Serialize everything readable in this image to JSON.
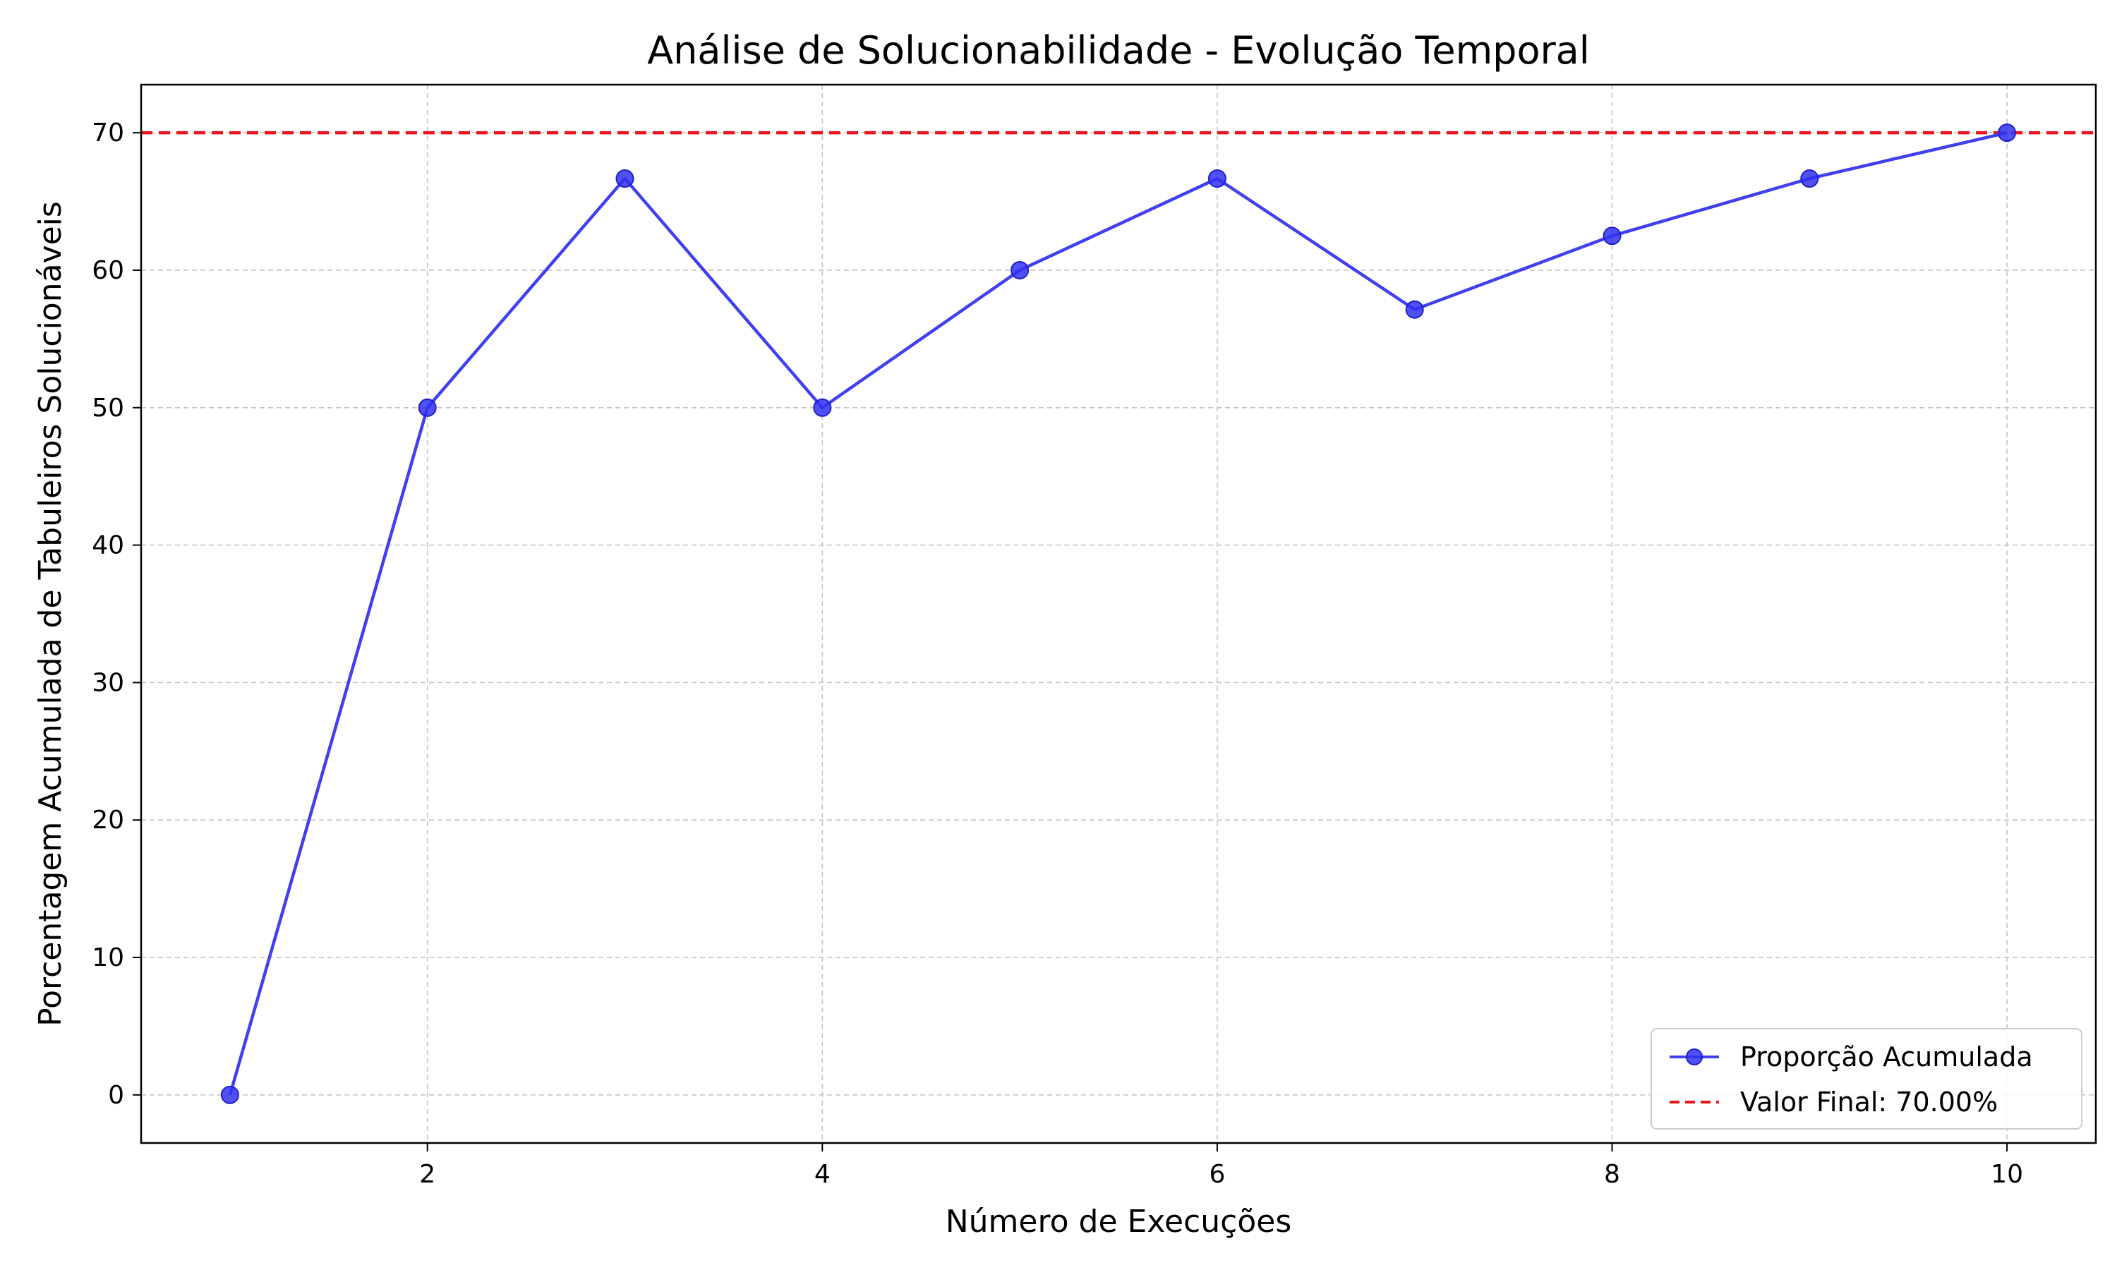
{
  "chart_data": {
    "type": "line",
    "title": "Análise de Solucionabilidade - Evolução Temporal",
    "xlabel": "Número de Execuções",
    "ylabel": "Porcentagem Acumulada de Tabuleiros Solucionáveis",
    "xlim": [
      0.55,
      10.45
    ],
    "ylim": [
      -3.5,
      73.5
    ],
    "xticks": [
      2,
      4,
      6,
      8,
      10
    ],
    "yticks": [
      0,
      10,
      20,
      30,
      40,
      50,
      60,
      70
    ],
    "grid": true,
    "legend_position": "lower-right",
    "series": [
      {
        "name": "Proporção Acumulada",
        "color": "#4040f0",
        "marker": "circle",
        "x": [
          1,
          2,
          3,
          4,
          5,
          6,
          7,
          8,
          9,
          10
        ],
        "y": [
          0,
          50,
          66.67,
          50,
          60,
          66.67,
          57.14,
          62.5,
          66.67,
          70
        ]
      }
    ],
    "reference_line": {
      "name": "Valor Final: 70.00%",
      "value": 70,
      "color": "#e8141e",
      "style": "dashed"
    }
  }
}
